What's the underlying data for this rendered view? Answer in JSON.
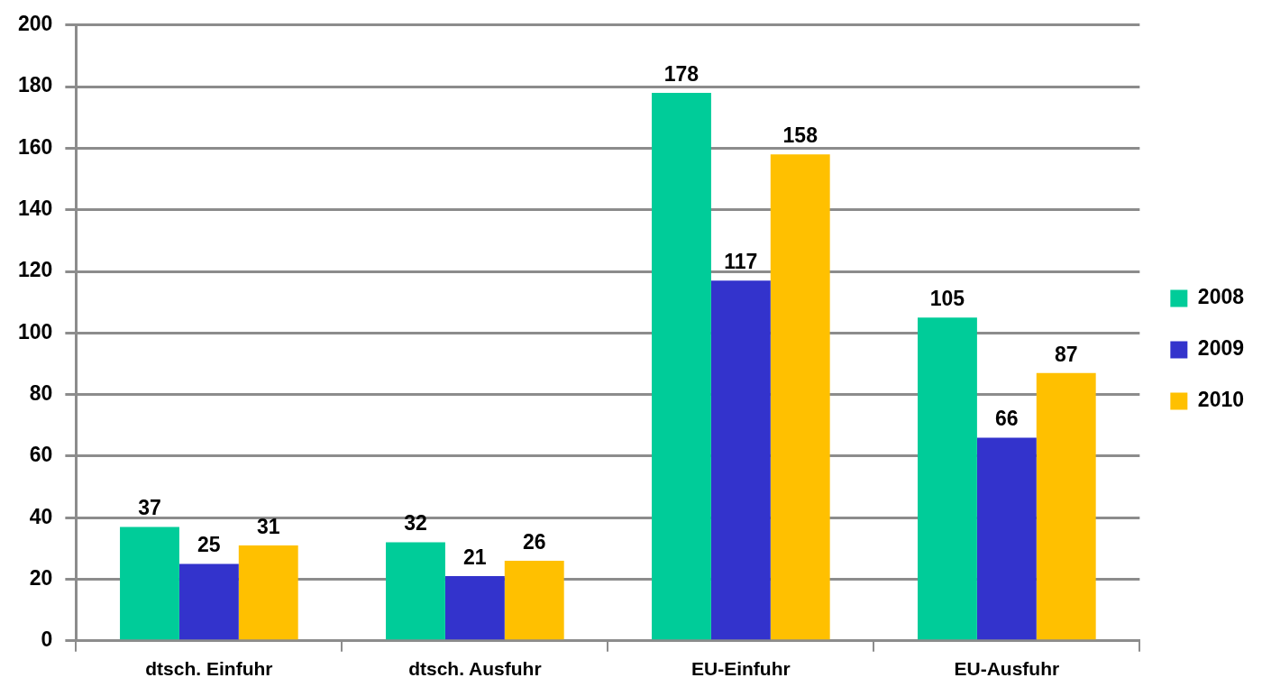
{
  "chart_data": {
    "type": "bar",
    "categories": [
      "dtsch. Einfuhr",
      "dtsch. Ausfuhr",
      "EU-Einfuhr",
      "EU-Ausfuhr"
    ],
    "series": [
      {
        "name": "2008",
        "color": "#00cc99",
        "values": [
          37,
          32,
          178,
          105
        ]
      },
      {
        "name": "2009",
        "color": "#3333cc",
        "values": [
          25,
          21,
          117,
          66
        ]
      },
      {
        "name": "2010",
        "color": "#ffc000",
        "values": [
          31,
          26,
          158,
          87
        ]
      }
    ],
    "ylim": [
      0,
      200
    ],
    "yticks": [
      0,
      20,
      40,
      60,
      80,
      100,
      120,
      140,
      160,
      180,
      200
    ],
    "grid": "y",
    "legend": "right",
    "data_labels": true
  }
}
